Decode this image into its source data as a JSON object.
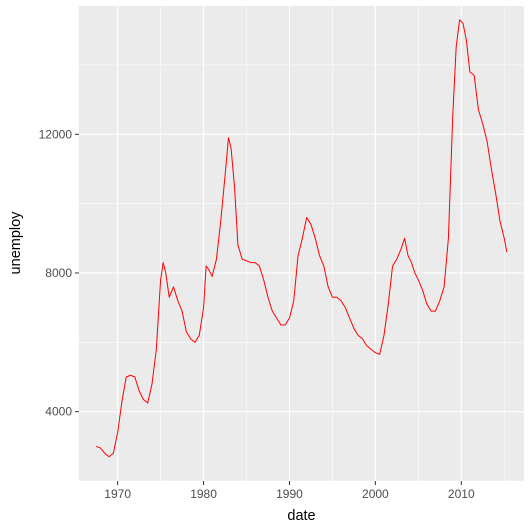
{
  "chart_data": {
    "type": "line",
    "title": "",
    "xlabel": "date",
    "ylabel": "unemploy",
    "xlim": [
      1965.5,
      2017.3
    ],
    "ylim": [
      2000,
      15700
    ],
    "x_ticks": [
      1970,
      1980,
      1990,
      2000,
      2010
    ],
    "x_tick_labels": [
      "1970",
      "1980",
      "1990",
      "2000",
      "2010"
    ],
    "y_ticks": [
      4000,
      8000,
      12000
    ],
    "y_tick_labels": [
      "4000",
      "8000",
      "12000"
    ],
    "grid": true,
    "background": "#ebebeb",
    "gridline_color": "#ffffff",
    "line_color": "#ff0000",
    "series": [
      {
        "x": [
          1967.5,
          1968.0,
          1968.5,
          1969.0,
          1969.5,
          1970.0,
          1970.5,
          1971.0,
          1971.5,
          1972.0,
          1972.5,
          1973.0,
          1973.5,
          1974.0,
          1974.5,
          1975.0,
          1975.3,
          1975.6,
          1976.0,
          1976.5,
          1977.0,
          1977.5,
          1978.0,
          1978.5,
          1979.0,
          1979.5,
          1980.0,
          1980.3,
          1980.6,
          1981.0,
          1981.5,
          1982.0,
          1982.5,
          1982.9,
          1983.2,
          1983.6,
          1984.0,
          1984.5,
          1985.0,
          1985.5,
          1986.0,
          1986.5,
          1987.0,
          1987.5,
          1988.0,
          1988.5,
          1989.0,
          1989.5,
          1990.0,
          1990.5,
          1991.0,
          1991.5,
          1992.0,
          1992.5,
          1993.0,
          1993.5,
          1994.0,
          1994.5,
          1995.0,
          1995.5,
          1996.0,
          1996.5,
          1997.0,
          1997.5,
          1998.0,
          1998.5,
          1999.0,
          1999.5,
          2000.0,
          2000.5,
          2001.0,
          2001.5,
          2002.0,
          2002.5,
          2003.0,
          2003.4,
          2003.8,
          2004.2,
          2004.6,
          2005.0,
          2005.5,
          2006.0,
          2006.5,
          2007.0,
          2007.5,
          2008.0,
          2008.5,
          2009.0,
          2009.4,
          2009.8,
          2010.2,
          2010.6,
          2011.0,
          2011.5,
          2012.0,
          2012.5,
          2013.0,
          2013.5,
          2014.0,
          2014.5,
          2015.0,
          2015.3
        ],
        "y": [
          3000,
          2950,
          2800,
          2700,
          2800,
          3400,
          4300,
          5000,
          5050,
          5000,
          4600,
          4350,
          4250,
          4800,
          5800,
          7800,
          8300,
          8000,
          7300,
          7600,
          7200,
          6900,
          6300,
          6100,
          6000,
          6200,
          7000,
          8200,
          8100,
          7900,
          8400,
          9500,
          10800,
          11900,
          11600,
          10500,
          8800,
          8400,
          8350,
          8300,
          8300,
          8200,
          7800,
          7300,
          6900,
          6700,
          6500,
          6500,
          6700,
          7200,
          8500,
          9000,
          9600,
          9400,
          9000,
          8500,
          8200,
          7600,
          7300,
          7300,
          7200,
          7000,
          6700,
          6400,
          6200,
          6100,
          5900,
          5800,
          5700,
          5650,
          6200,
          7100,
          8200,
          8400,
          8700,
          9000,
          8500,
          8300,
          8000,
          7800,
          7500,
          7100,
          6900,
          6900,
          7200,
          7600,
          9000,
          12500,
          14500,
          15300,
          15200,
          14700,
          13800,
          13700,
          12700,
          12300,
          11800,
          11000,
          10300,
          9500,
          9000,
          8600
        ]
      }
    ]
  }
}
